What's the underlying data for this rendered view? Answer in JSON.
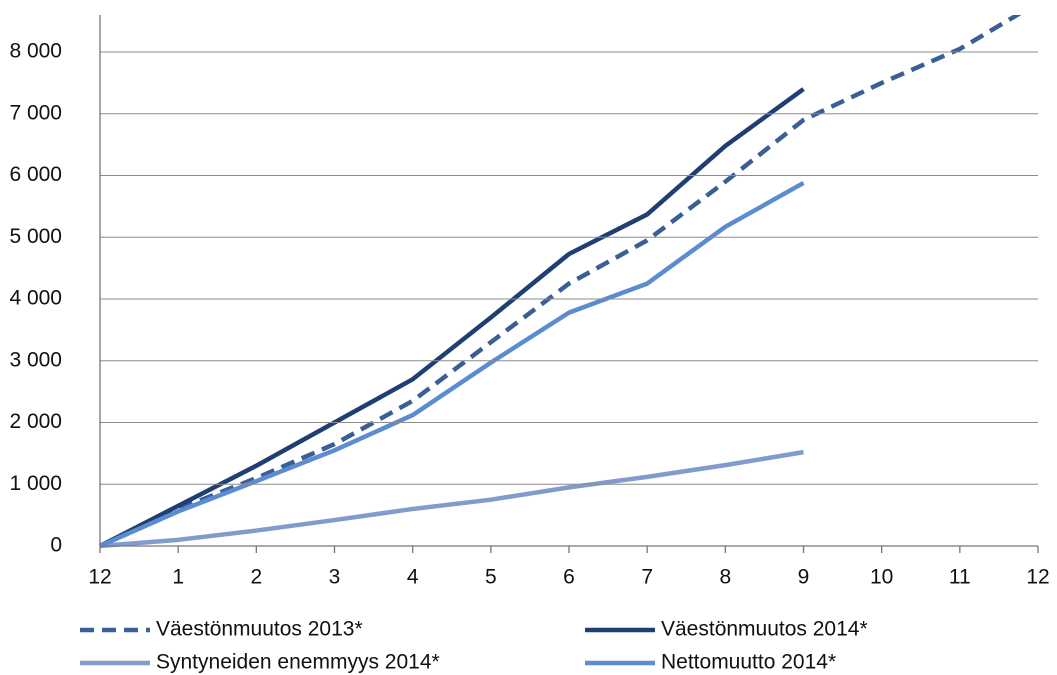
{
  "chart_data": {
    "type": "line",
    "categories": [
      "12",
      "1",
      "2",
      "3",
      "4",
      "5",
      "6",
      "7",
      "8",
      "9",
      "10",
      "11",
      "12"
    ],
    "series": [
      {
        "name": "Väestönmuutos 2013*",
        "color": "#3a5f96",
        "dashed": true,
        "values": [
          0,
          600,
          1100,
          1650,
          2350,
          3300,
          4250,
          4950,
          5900,
          6900,
          7500,
          8050,
          8800
        ]
      },
      {
        "name": "Väestönmuutos 2014*",
        "color": "#1f3f73",
        "dashed": false,
        "values": [
          0,
          650,
          1300,
          2000,
          2700,
          3700,
          4730,
          5370,
          6480,
          7400,
          null,
          null,
          null
        ]
      },
      {
        "name": "Syntyneiden enemmyys 2014*",
        "color": "#7f9ccc",
        "dashed": false,
        "values": [
          0,
          100,
          250,
          420,
          600,
          750,
          950,
          1120,
          1310,
          1520,
          null,
          null,
          null
        ]
      },
      {
        "name": "Nettomuutto 2014*",
        "color": "#5b8bd0",
        "dashed": false,
        "values": [
          0,
          560,
          1050,
          1550,
          2120,
          2970,
          3780,
          4250,
          5170,
          5880,
          null,
          null,
          null
        ]
      }
    ],
    "ylim": [
      0,
      8600
    ],
    "yticks": [
      0,
      {
        "value": 1000,
        "label": "1 000"
      },
      {
        "value": 2000,
        "label": "2 000"
      },
      {
        "value": 3000,
        "label": "3 000"
      },
      {
        "value": 4000,
        "label": "4 000"
      },
      {
        "value": 5000,
        "label": "5 000"
      },
      {
        "value": 6000,
        "label": "6 000"
      },
      {
        "value": 7000,
        "label": "7 000"
      },
      {
        "value": 8000,
        "label": "8 000"
      }
    ],
    "grid": true,
    "legend": "bottom"
  }
}
